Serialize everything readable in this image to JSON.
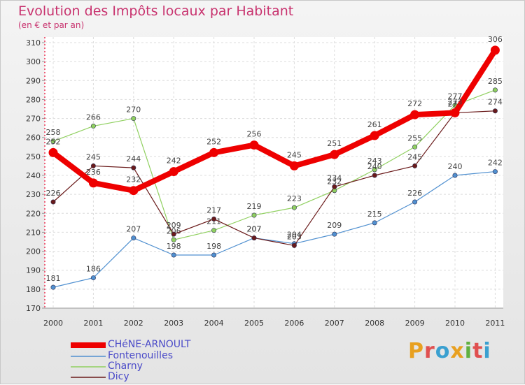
{
  "header": {
    "title": "Evolution des Impôts locaux par Habitant",
    "subtitle": "(en € et par an)"
  },
  "brand": {
    "letters": [
      "P",
      "r",
      "o",
      "x",
      "i",
      "t",
      "i"
    ],
    "colors": [
      "#e8a020",
      "#e05050",
      "#3aa0d0",
      "#e8a020",
      "#60b040",
      "#e05050",
      "#3aa0d0"
    ]
  },
  "chart_data": {
    "type": "line",
    "title": "Evolution des Impôts locaux par Habitant",
    "subtitle": "(en € et par an)",
    "xlabel": "",
    "ylabel": "",
    "x": [
      "2000",
      "2001",
      "2002",
      "2003",
      "2004",
      "2005",
      "2006",
      "2007",
      "2008",
      "2009",
      "2010",
      "2011"
    ],
    "ylim": [
      170,
      310
    ],
    "yticks": [
      170,
      180,
      190,
      200,
      210,
      220,
      230,
      240,
      250,
      260,
      270,
      280,
      290,
      300,
      310
    ],
    "grid": true,
    "legend_position": "bottom-left",
    "series": [
      {
        "name": "Fontenouilles",
        "color": "#5090d0",
        "values": [
          181,
          186,
          207,
          198,
          198,
          207,
          204,
          209,
          215,
          226,
          240,
          242
        ]
      },
      {
        "name": "Charny",
        "color": "#90d060",
        "values": [
          258,
          266,
          270,
          206,
          211,
          219,
          223,
          232,
          243,
          255,
          277,
          285
        ]
      },
      {
        "name": "Dicy",
        "color": "#6a1a1a",
        "values": [
          226,
          245,
          244,
          209,
          217,
          207,
          203,
          234,
          240,
          245,
          273,
          274
        ]
      },
      {
        "name": "CHéNE-ARNOULT",
        "color": "#ee0000",
        "values": [
          252,
          236,
          232,
          242,
          252,
          256,
          245,
          251,
          261,
          272,
          273,
          306
        ]
      }
    ],
    "legend": [
      "CHéNE-ARNOULT",
      "Fontenouilles",
      "Charny",
      "Dicy"
    ]
  }
}
